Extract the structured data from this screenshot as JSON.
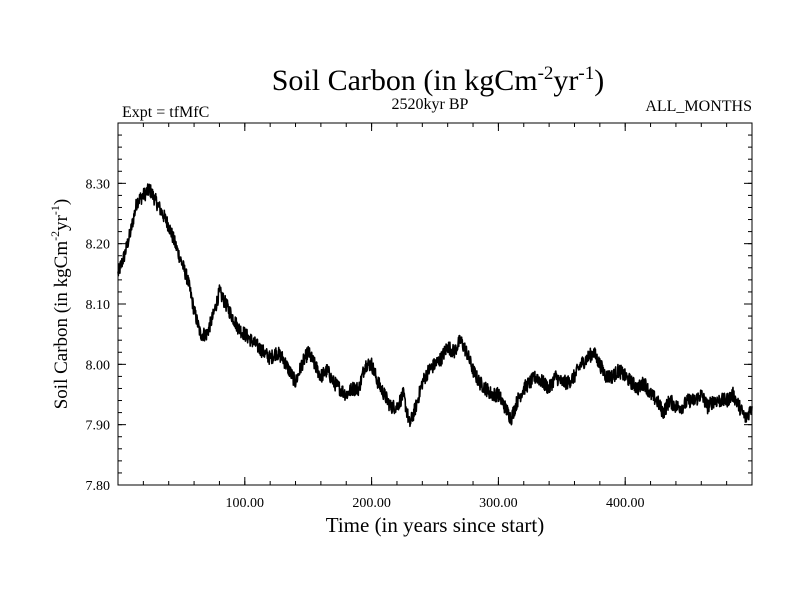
{
  "header": {
    "title_main": "Soil Carbon (in kgCm",
    "title_sup1": "-2",
    "title_mid": "yr",
    "title_sup2": "-1",
    "title_end": ")",
    "left_label": "Expt = tfMfC",
    "center_label": "2520kyr BP",
    "right_label": "ALL_MONTHS"
  },
  "axes": {
    "xlabel": "Time (in years since start)",
    "ylabel_main": "Soil Carbon (in kgCm",
    "ylabel_sup1": "-2",
    "ylabel_mid": "yr",
    "ylabel_sup2": "-1",
    "ylabel_end": ")"
  },
  "colors": {
    "line": "#000000",
    "axis": "#000000",
    "background": "#ffffff"
  },
  "chart_data": {
    "type": "line",
    "title": "Soil Carbon (in kgCm-2yr-1)",
    "xlabel": "Time (in years since start)",
    "ylabel": "Soil Carbon (in kgCm-2yr-1)",
    "xlim": [
      0,
      500
    ],
    "ylim": [
      7.8,
      8.4
    ],
    "x_ticks": [
      100,
      200,
      300,
      400
    ],
    "x_tick_labels": [
      "100.00",
      "200.00",
      "300.00",
      "400.00"
    ],
    "y_ticks": [
      7.8,
      7.9,
      8.0,
      8.1,
      8.2,
      8.3
    ],
    "y_tick_labels": [
      "7.80",
      "7.90",
      "8.00",
      "8.10",
      "8.20",
      "8.30"
    ],
    "grid": false,
    "series": [
      {
        "name": "Soil Carbon",
        "x": [
          0,
          5,
          10,
          15,
          20,
          25,
          30,
          35,
          40,
          45,
          50,
          55,
          60,
          65,
          70,
          75,
          80,
          85,
          90,
          95,
          100,
          105,
          110,
          115,
          120,
          125,
          130,
          135,
          140,
          145,
          150,
          155,
          160,
          165,
          170,
          175,
          180,
          185,
          190,
          195,
          200,
          205,
          210,
          215,
          220,
          225,
          230,
          235,
          240,
          245,
          250,
          255,
          260,
          265,
          270,
          275,
          280,
          285,
          290,
          295,
          300,
          305,
          310,
          315,
          320,
          325,
          330,
          335,
          340,
          345,
          350,
          355,
          360,
          365,
          370,
          375,
          380,
          385,
          390,
          395,
          400,
          405,
          410,
          415,
          420,
          425,
          430,
          435,
          440,
          445,
          450,
          455,
          460,
          465,
          470,
          475,
          480,
          485,
          490,
          495,
          500
        ],
        "values": [
          8.15,
          8.18,
          8.22,
          8.27,
          8.28,
          8.29,
          8.27,
          8.25,
          8.23,
          8.2,
          8.17,
          8.14,
          8.09,
          8.05,
          8.05,
          8.08,
          8.12,
          8.1,
          8.08,
          8.06,
          8.05,
          8.04,
          8.03,
          8.02,
          8.01,
          8.02,
          8.01,
          7.99,
          7.97,
          8.0,
          8.02,
          8.0,
          7.98,
          7.99,
          7.97,
          7.96,
          7.95,
          7.96,
          7.96,
          8.0,
          8.0,
          7.97,
          7.95,
          7.93,
          7.93,
          7.95,
          7.9,
          7.93,
          7.97,
          7.99,
          8.0,
          8.01,
          8.03,
          8.02,
          8.04,
          8.02,
          7.99,
          7.97,
          7.96,
          7.95,
          7.95,
          7.93,
          7.91,
          7.94,
          7.96,
          7.97,
          7.98,
          7.97,
          7.96,
          7.98,
          7.97,
          7.97,
          7.98,
          8.0,
          8.01,
          8.02,
          8.0,
          7.98,
          7.98,
          7.99,
          7.98,
          7.97,
          7.96,
          7.97,
          7.95,
          7.94,
          7.92,
          7.94,
          7.93,
          7.93,
          7.94,
          7.94,
          7.95,
          7.93,
          7.94,
          7.94,
          7.94,
          7.95,
          7.93,
          7.91,
          7.93
        ]
      }
    ]
  }
}
